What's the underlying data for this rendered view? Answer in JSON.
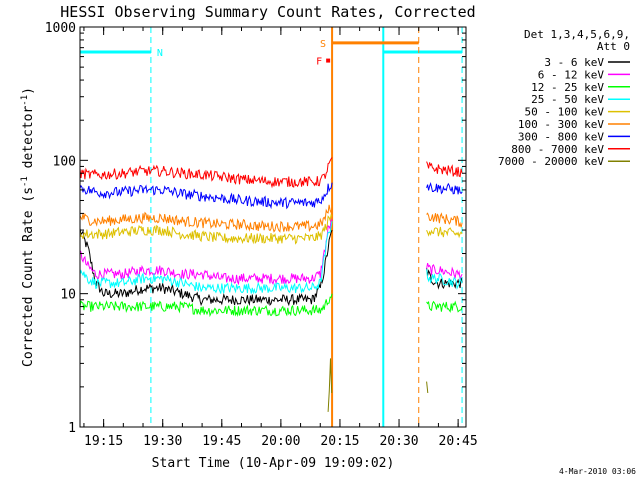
{
  "chart_data": {
    "type": "line",
    "title": "HESSI Observing Summary Count Rates, Corrected",
    "xlabel": "Start Time (10-Apr-09 19:09:02)",
    "ylabel_main": "Corrected Count Rate (s",
    "ylabel_sup1": "-1",
    "ylabel_mid": " detector",
    "ylabel_sup2": "-1",
    "ylabel_end": ")",
    "yscale": "log",
    "xlim": [
      "19:09:02",
      "20:47:00"
    ],
    "ylim": [
      1,
      1000
    ],
    "xticks": [
      "19:15",
      "19:30",
      "19:45",
      "20:00",
      "20:15",
      "20:30",
      "20:45"
    ],
    "yticks": [
      "1",
      "10",
      "100",
      "1000"
    ],
    "legend_title_1": "Det 1,3,4,5,6,9,",
    "legend_title_2": "Att 0",
    "legend_position": "right",
    "footer_date": "4-Mar-2010 03:06",
    "flags": [
      {
        "label": "N",
        "color": "#00ffff",
        "x_start": "19:09:02",
        "x_end": "19:27:00",
        "y": 650,
        "boundary": "19:27:00",
        "boundary_color": "#00ffff"
      },
      {
        "label": "N",
        "color": "#00ffff",
        "x_start": "20:26:00",
        "x_end": "20:46:00",
        "y": 650,
        "boundary": "20:46:00",
        "boundary_color": "#00ffff"
      },
      {
        "label": "S",
        "color": "#ff8000",
        "x_start": "20:13:00",
        "x_end": "20:35:00",
        "y": 760,
        "boundary": "20:35:00",
        "boundary_color": "#ff8000"
      },
      {
        "label": "F",
        "color": "#ff0000",
        "x_start": "20:12:00",
        "x_end": "20:12:00",
        "y": 560
      }
    ],
    "data_gaps": [
      {
        "start": "20:13:00",
        "end": "20:26:00",
        "edge_color": "#ff8000"
      },
      {
        "start": "20:26:00",
        "end": "20:37:00",
        "edge_color": "#00ffff"
      }
    ],
    "series": [
      {
        "name": "3 - 6 keV",
        "color": "#000000",
        "x": [
          "19:09",
          "19:11",
          "19:13",
          "19:15",
          "19:20",
          "19:25",
          "19:30",
          "19:35",
          "19:40",
          "19:45",
          "19:50",
          "19:55",
          "20:00",
          "20:05",
          "20:08",
          "20:10",
          "20:11",
          "20:12",
          "20:13",
          "20:37",
          "20:38",
          "20:40",
          "20:45",
          "20:46"
        ],
        "values": [
          30,
          22,
          12,
          10,
          10,
          11,
          11,
          10,
          9,
          9,
          9,
          9,
          9,
          9,
          9,
          11,
          15,
          22,
          30,
          15,
          13,
          12,
          12,
          12
        ]
      },
      {
        "name": "6 - 12 keV",
        "color": "#ff00ff",
        "x": [
          "19:09",
          "19:11",
          "19:13",
          "19:15",
          "19:20",
          "19:25",
          "19:30",
          "19:35",
          "19:40",
          "19:45",
          "19:50",
          "19:55",
          "20:00",
          "20:05",
          "20:08",
          "20:10",
          "20:11",
          "20:12",
          "20:13",
          "20:37",
          "20:38",
          "20:40",
          "20:45",
          "20:46"
        ],
        "values": [
          20,
          16,
          14,
          14,
          14,
          15,
          15,
          14,
          14,
          13,
          13,
          13,
          13,
          13,
          13,
          14,
          20,
          30,
          35,
          16,
          15,
          15,
          14,
          14
        ]
      },
      {
        "name": "12 - 25 keV",
        "color": "#00ff00",
        "x": [
          "19:09",
          "19:11",
          "19:13",
          "19:15",
          "19:20",
          "19:25",
          "19:30",
          "19:35",
          "19:40",
          "19:45",
          "19:50",
          "19:55",
          "20:00",
          "20:05",
          "20:08",
          "20:10",
          "20:11",
          "20:12",
          "20:13",
          "20:37",
          "20:38",
          "20:40",
          "20:45",
          "20:46"
        ],
        "values": [
          8,
          8,
          8,
          8,
          8,
          8,
          8,
          8,
          7.5,
          7.5,
          7.5,
          7.5,
          7.5,
          7.5,
          7.5,
          7.5,
          8,
          9,
          10,
          8,
          8,
          8,
          8,
          8
        ]
      },
      {
        "name": "25 - 50 keV",
        "color": "#00ffff",
        "x": [
          "19:09",
          "19:11",
          "19:13",
          "19:15",
          "19:20",
          "19:25",
          "19:30",
          "19:35",
          "19:40",
          "19:45",
          "19:50",
          "19:55",
          "20:00",
          "20:05",
          "20:08",
          "20:10",
          "20:11",
          "20:12",
          "20:13",
          "20:37",
          "20:38",
          "20:40",
          "20:45",
          "20:46"
        ],
        "values": [
          15,
          13,
          12,
          12,
          12,
          13,
          13,
          12,
          11,
          11,
          11,
          11,
          11,
          11,
          11,
          12,
          18,
          28,
          35,
          14,
          13,
          13,
          12,
          12
        ]
      },
      {
        "name": "50 - 100 keV",
        "color": "#ddc000",
        "x": [
          "19:09",
          "19:11",
          "19:13",
          "19:15",
          "19:20",
          "19:25",
          "19:30",
          "19:35",
          "19:40",
          "19:45",
          "19:50",
          "19:55",
          "20:00",
          "20:05",
          "20:08",
          "20:10",
          "20:11",
          "20:12",
          "20:13",
          "20:37",
          "20:38",
          "20:40",
          "20:45",
          "20:46"
        ],
        "values": [
          28,
          28,
          28,
          28,
          29,
          30,
          30,
          28,
          27,
          26,
          26,
          26,
          26,
          26,
          26,
          27,
          30,
          35,
          38,
          30,
          30,
          29,
          28,
          28
        ]
      },
      {
        "name": "100 - 300 keV",
        "color": "#ff8000",
        "x": [
          "19:09",
          "19:11",
          "19:13",
          "19:15",
          "19:20",
          "19:25",
          "19:30",
          "19:35",
          "19:40",
          "19:45",
          "19:50",
          "19:55",
          "20:00",
          "20:05",
          "20:08",
          "20:10",
          "20:11",
          "20:12",
          "20:13",
          "20:37",
          "20:38",
          "20:40",
          "20:45",
          "20:46"
        ],
        "values": [
          38,
          36,
          35,
          35,
          36,
          37,
          37,
          35,
          34,
          33,
          33,
          32,
          32,
          32,
          32,
          33,
          36,
          42,
          45,
          38,
          38,
          37,
          35,
          34
        ]
      },
      {
        "name": "300 - 800 keV",
        "color": "#0000ff",
        "x": [
          "19:09",
          "19:11",
          "19:13",
          "19:15",
          "19:20",
          "19:25",
          "19:30",
          "19:35",
          "19:40",
          "19:45",
          "19:50",
          "19:55",
          "20:00",
          "20:05",
          "20:08",
          "20:10",
          "20:11",
          "20:12",
          "20:13",
          "20:37",
          "20:38",
          "20:40",
          "20:45",
          "20:46"
        ],
        "values": [
          62,
          60,
          58,
          57,
          58,
          60,
          60,
          56,
          54,
          52,
          50,
          49,
          48,
          48,
          48,
          50,
          55,
          62,
          68,
          65,
          63,
          62,
          60,
          58
        ]
      },
      {
        "name": "800 - 7000 keV",
        "color": "#ff0000",
        "x": [
          "19:09",
          "19:11",
          "19:13",
          "19:15",
          "19:20",
          "19:25",
          "19:30",
          "19:35",
          "19:40",
          "19:45",
          "19:50",
          "19:55",
          "20:00",
          "20:05",
          "20:08",
          "20:10",
          "20:11",
          "20:12",
          "20:13",
          "20:37",
          "20:38",
          "20:40",
          "20:45",
          "20:46"
        ],
        "values": [
          80,
          78,
          78,
          78,
          80,
          83,
          83,
          80,
          78,
          75,
          72,
          70,
          69,
          69,
          69,
          70,
          75,
          88,
          105,
          90,
          88,
          86,
          82,
          80
        ]
      },
      {
        "name": "7000 - 20000 keV",
        "color": "#808000",
        "x": [
          "20:12.0",
          "20:12.3",
          "20:12.6",
          "20:12.9",
          "20:37.0",
          "20:37.3"
        ],
        "values": [
          1.4,
          2.0,
          3.0,
          1.8,
          2.0,
          1.8
        ]
      }
    ]
  }
}
